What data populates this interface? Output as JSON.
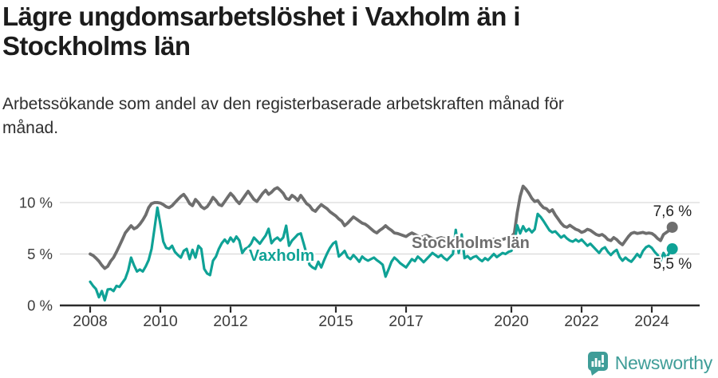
{
  "title": "Lägre ungdomsarbetslöshet i Vaxholm än i Stockholms län",
  "subtitle": "Arbetssökande som andel av den registerbaserade arbetskraften månad för månad.",
  "footer": {
    "brand": "Newsworthy",
    "logo_icon": "bar-chart-pin-icon"
  },
  "colors": {
    "vaxholm": "#0fa296",
    "stockholm": "#6e6e6e",
    "axis": "#2b2b2b",
    "grid": "#d9d9d9",
    "tick_text": "#3c3c3c",
    "title_text": "#1c1c1c",
    "end_label_text": "#232323",
    "brand": "#3f9d98"
  },
  "chart_data": {
    "type": "line",
    "unit": "%",
    "x_start_year": 2008,
    "x_interval": "monthly",
    "x_end_label": "2024 (Aug)",
    "ylim": [
      0,
      12
    ],
    "grid": "horizontal",
    "legend_position": "inline-labels",
    "y_ticks": [
      {
        "value": 0,
        "label": "0 %"
      },
      {
        "value": 5,
        "label": "5 %"
      },
      {
        "value": 10,
        "label": "10 %"
      }
    ],
    "x_ticks": [
      {
        "year": 2008,
        "label": "2008"
      },
      {
        "year": 2010,
        "label": "2010"
      },
      {
        "year": 2012,
        "label": "2012"
      },
      {
        "year": 2015,
        "label": "2015"
      },
      {
        "year": 2017,
        "label": "2017"
      },
      {
        "year": 2020,
        "label": "2020"
      },
      {
        "year": 2022,
        "label": "2022"
      },
      {
        "year": 2024,
        "label": "2024"
      }
    ],
    "series": [
      {
        "name": "Stockholms län",
        "color_key": "stockholm",
        "stroke_width": 3.8,
        "end_label": "7,6 %",
        "last_value": 7.6,
        "values": [
          5.0,
          4.85,
          4.6,
          4.3,
          3.9,
          3.6,
          3.8,
          4.3,
          4.65,
          5.2,
          5.8,
          6.4,
          7.05,
          7.4,
          7.75,
          7.45,
          7.6,
          7.9,
          8.3,
          8.8,
          9.5,
          9.9,
          10.0,
          10.0,
          9.95,
          9.8,
          9.6,
          9.5,
          9.7,
          10.0,
          10.3,
          10.6,
          10.8,
          10.4,
          9.9,
          9.7,
          10.3,
          10.0,
          9.6,
          9.4,
          9.6,
          10.0,
          10.5,
          10.2,
          9.8,
          9.7,
          10.1,
          10.5,
          10.9,
          10.6,
          10.2,
          9.9,
          10.3,
          10.7,
          11.1,
          10.7,
          10.3,
          10.1,
          10.5,
          10.9,
          11.2,
          10.8,
          11.0,
          11.3,
          11.45,
          11.2,
          10.9,
          10.4,
          10.3,
          10.7,
          10.5,
          10.2,
          10.7,
          10.3,
          9.9,
          9.7,
          9.3,
          9.15,
          9.5,
          9.8,
          9.6,
          9.4,
          9.1,
          8.9,
          8.7,
          8.4,
          8.2,
          7.75,
          8.0,
          8.3,
          8.6,
          8.4,
          8.2,
          8.0,
          7.9,
          7.7,
          7.45,
          7.2,
          7.05,
          7.3,
          7.5,
          7.75,
          7.5,
          7.3,
          7.05,
          7.0,
          6.9,
          6.8,
          6.7,
          6.9,
          7.05,
          6.9,
          6.75,
          6.6,
          6.7,
          6.8,
          6.65,
          6.5,
          6.4,
          6.5,
          6.6,
          6.5,
          6.3,
          6.4,
          6.3,
          6.2,
          6.35,
          6.4,
          6.25,
          6.15,
          6.1,
          6.2,
          6.3,
          6.2,
          6.3,
          6.25,
          6.2,
          6.3,
          6.45,
          6.4,
          6.3,
          6.4,
          6.5,
          6.6,
          6.7,
          7.0,
          9.0,
          10.6,
          11.6,
          11.3,
          10.9,
          10.4,
          10.1,
          10.2,
          9.8,
          9.5,
          9.4,
          9.1,
          9.3,
          8.8,
          8.4,
          8.0,
          7.7,
          7.6,
          7.8,
          7.6,
          7.4,
          7.3,
          7.1,
          7.2,
          7.4,
          7.3,
          7.1,
          6.9,
          6.8,
          6.9,
          6.7,
          6.4,
          6.3,
          6.6,
          6.4,
          6.1,
          5.9,
          6.3,
          6.7,
          7.0,
          7.1,
          7.0,
          7.05,
          7.1,
          7.0,
          7.05,
          7.0,
          6.8,
          6.5,
          6.3,
          6.9,
          7.1,
          7.3,
          7.6
        ]
      },
      {
        "name": "Vaxholm",
        "color_key": "vaxholm",
        "stroke_width": 3.2,
        "end_label": "5,5 %",
        "last_value": 5.5,
        "values": [
          2.3,
          1.9,
          1.6,
          0.8,
          1.4,
          0.5,
          1.55,
          1.6,
          1.4,
          1.9,
          1.8,
          2.2,
          2.6,
          3.4,
          4.65,
          3.9,
          3.3,
          3.5,
          3.3,
          3.8,
          4.4,
          5.5,
          7.5,
          9.5,
          7.9,
          6.2,
          5.6,
          5.5,
          5.8,
          5.2,
          4.9,
          4.65,
          5.3,
          5.5,
          4.5,
          5.4,
          4.65,
          5.8,
          5.5,
          3.55,
          3.1,
          2.95,
          4.35,
          4.75,
          5.5,
          6.05,
          6.4,
          6.05,
          6.6,
          6.2,
          6.7,
          6.3,
          5.1,
          5.5,
          5.65,
          6.0,
          6.6,
          6.3,
          6.0,
          6.4,
          6.8,
          7.45,
          6.05,
          6.4,
          6.6,
          6.3,
          6.6,
          7.75,
          5.8,
          6.3,
          6.6,
          6.9,
          7.0,
          6.0,
          5.0,
          3.95,
          3.7,
          3.55,
          4.25,
          3.7,
          4.4,
          5.05,
          5.6,
          6.0,
          6.2,
          4.75,
          5.0,
          5.3,
          4.7,
          4.5,
          4.9,
          4.6,
          4.25,
          4.75,
          4.5,
          4.35,
          4.5,
          4.65,
          4.4,
          4.2,
          3.95,
          2.8,
          3.5,
          4.25,
          4.65,
          4.4,
          4.1,
          3.9,
          3.7,
          4.1,
          4.5,
          4.3,
          4.75,
          4.5,
          4.2,
          4.5,
          4.8,
          5.1,
          4.9,
          4.7,
          4.9,
          4.6,
          4.4,
          4.7,
          5.0,
          7.35,
          5.1,
          6.9,
          4.6,
          4.8,
          4.5,
          4.7,
          4.8,
          4.5,
          4.3,
          4.6,
          4.4,
          4.7,
          5.0,
          4.7,
          4.9,
          5.1,
          5.0,
          5.2,
          5.3,
          5.9,
          7.8,
          7.0,
          7.7,
          7.2,
          7.45,
          7.1,
          7.4,
          8.9,
          8.6,
          8.2,
          7.75,
          7.3,
          7.1,
          7.2,
          6.9,
          6.6,
          6.8,
          6.5,
          6.3,
          6.2,
          6.4,
          6.2,
          6.4,
          6.1,
          5.8,
          6.0,
          5.7,
          5.4,
          5.1,
          5.5,
          5.65,
          5.2,
          4.9,
          5.2,
          5.4,
          4.7,
          4.35,
          4.65,
          4.4,
          4.25,
          4.6,
          5.0,
          4.7,
          5.3,
          5.65,
          5.8,
          5.6,
          5.2,
          4.9,
          4.35,
          5.1,
          4.6,
          5.1,
          5.5
        ]
      }
    ],
    "series_labels": [
      {
        "text": "Vaxholm",
        "series_index": 1,
        "x_year": 2012.52,
        "y_pct": 4.35
      },
      {
        "text": "Stockholms län",
        "series_index": 0,
        "x_year": 2017.16,
        "y_pct": 5.58
      }
    ],
    "end_labels": [
      {
        "text": "7,6 %",
        "x_year": 2025.14,
        "y_pct": 8.68,
        "anchor": "end"
      },
      {
        "text": "5,5 %",
        "x_year": 2025.14,
        "y_pct": 3.55,
        "anchor": "end"
      }
    ]
  }
}
